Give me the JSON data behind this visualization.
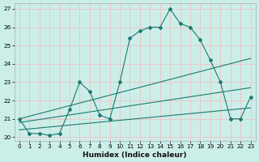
{
  "xlabel": "Humidex (Indice chaleur)",
  "bg_color": "#cceee9",
  "grid_color": "#e8c8c8",
  "line_color": "#1a7a6e",
  "xlim": [
    -0.5,
    23.5
  ],
  "ylim": [
    19.8,
    27.3
  ],
  "xticks": [
    0,
    1,
    2,
    3,
    4,
    5,
    6,
    7,
    8,
    9,
    10,
    11,
    12,
    13,
    14,
    15,
    16,
    17,
    18,
    19,
    20,
    21,
    22,
    23
  ],
  "yticks": [
    20,
    21,
    22,
    23,
    24,
    25,
    26,
    27
  ],
  "series1_x": [
    0,
    1,
    2,
    3,
    4,
    5,
    6,
    7,
    8,
    9,
    10,
    11,
    12,
    13,
    14,
    15,
    16,
    17,
    18,
    19,
    20,
    21,
    22,
    23
  ],
  "series1_y": [
    21.0,
    20.2,
    20.2,
    20.1,
    20.2,
    21.5,
    23.0,
    22.5,
    21.2,
    21.0,
    23.0,
    25.4,
    25.8,
    26.0,
    26.0,
    27.0,
    26.2,
    26.0,
    25.3,
    24.2,
    23.0,
    21.0,
    21.0,
    22.2
  ],
  "series2_x": [
    0,
    23
  ],
  "series2_y": [
    21.0,
    24.3
  ],
  "series3_x": [
    0,
    23
  ],
  "series3_y": [
    20.8,
    22.7
  ],
  "series4_x": [
    0,
    23
  ],
  "series4_y": [
    20.4,
    21.6
  ]
}
